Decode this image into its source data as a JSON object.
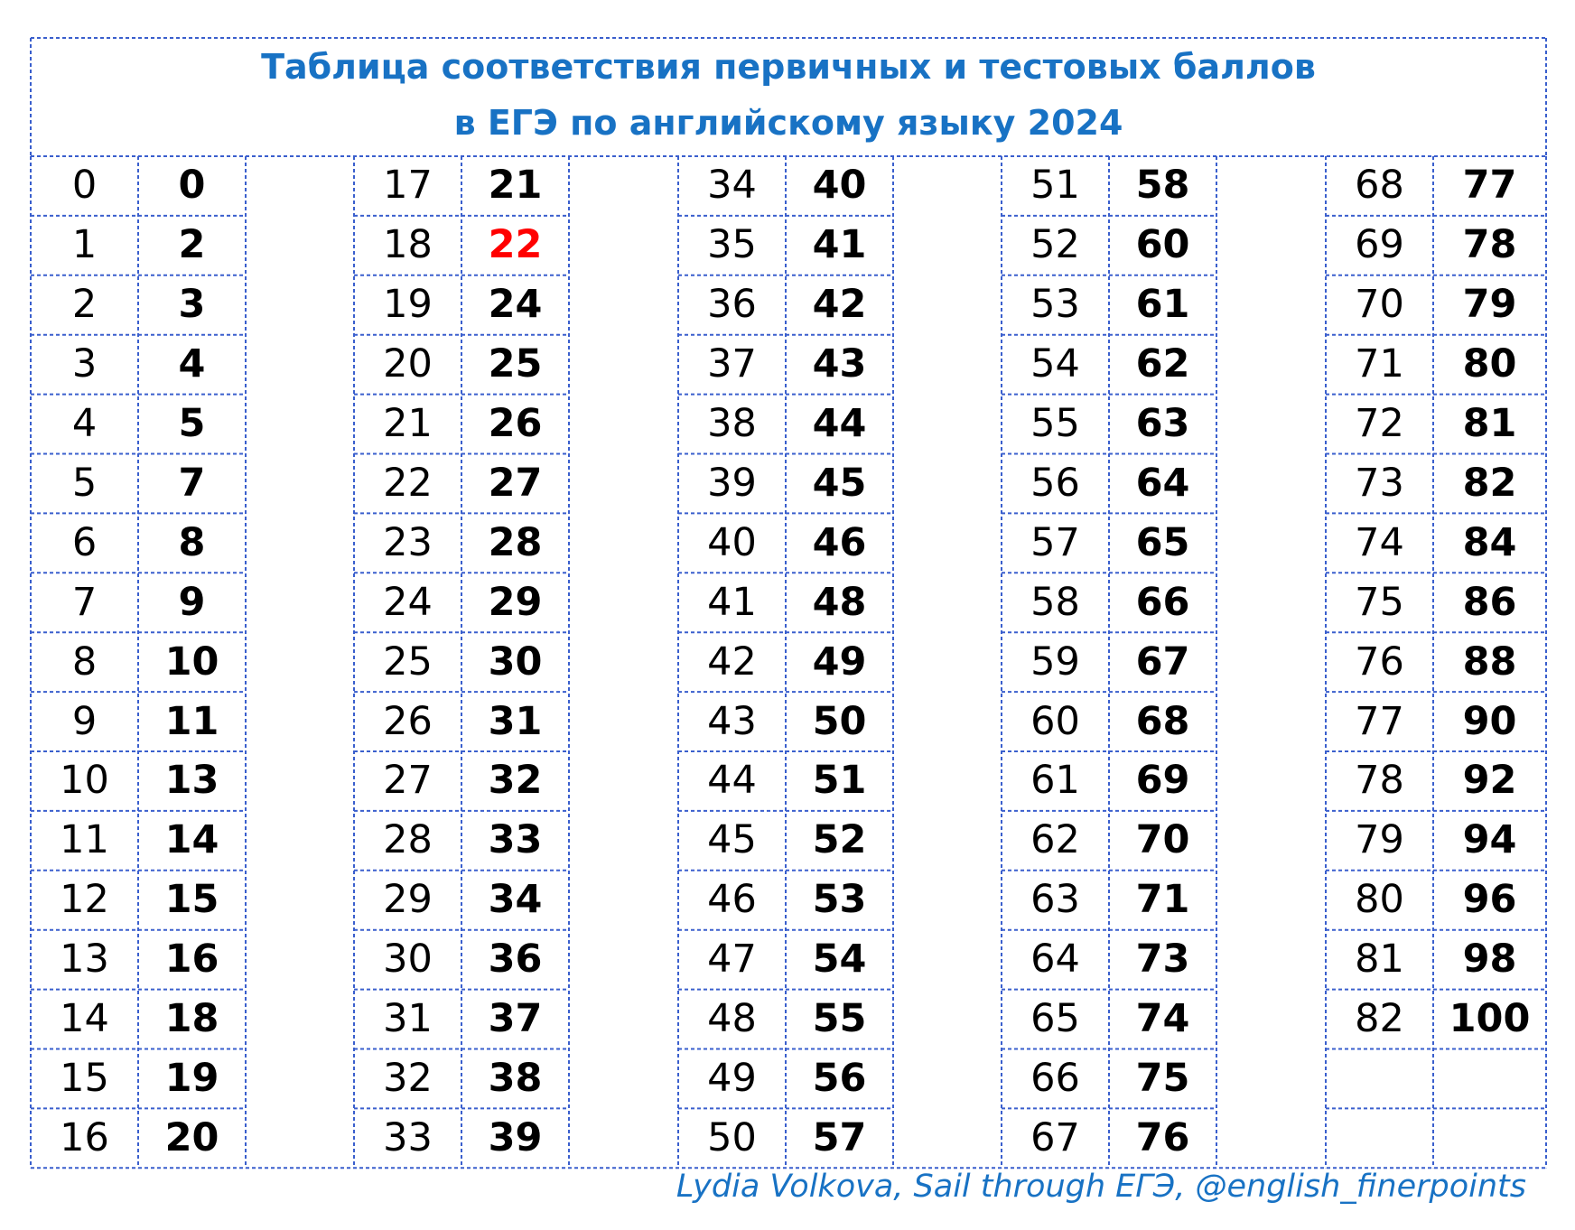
{
  "title": {
    "line1": "Таблица соответствия первичных и тестовых баллов",
    "line2": "в ЕГЭ по английскому языку 2024"
  },
  "accent_color": "#1872c4",
  "highlight_color": "#ff0000",
  "grid_color": "#3a5fcd",
  "table": {
    "columns": [
      {
        "rows": [
          {
            "primary": "0",
            "test": "0"
          },
          {
            "primary": "1",
            "test": "2"
          },
          {
            "primary": "2",
            "test": "3"
          },
          {
            "primary": "3",
            "test": "4"
          },
          {
            "primary": "4",
            "test": "5"
          },
          {
            "primary": "5",
            "test": "7"
          },
          {
            "primary": "6",
            "test": "8"
          },
          {
            "primary": "7",
            "test": "9"
          },
          {
            "primary": "8",
            "test": "10"
          },
          {
            "primary": "9",
            "test": "11"
          },
          {
            "primary": "10",
            "test": "13"
          },
          {
            "primary": "11",
            "test": "14"
          },
          {
            "primary": "12",
            "test": "15"
          },
          {
            "primary": "13",
            "test": "16"
          },
          {
            "primary": "14",
            "test": "18"
          },
          {
            "primary": "15",
            "test": "19"
          },
          {
            "primary": "16",
            "test": "20"
          }
        ]
      },
      {
        "rows": [
          {
            "primary": "17",
            "test": "21"
          },
          {
            "primary": "18",
            "test": "22",
            "highlight": true
          },
          {
            "primary": "19",
            "test": "24"
          },
          {
            "primary": "20",
            "test": "25"
          },
          {
            "primary": "21",
            "test": "26"
          },
          {
            "primary": "22",
            "test": "27"
          },
          {
            "primary": "23",
            "test": "28"
          },
          {
            "primary": "24",
            "test": "29"
          },
          {
            "primary": "25",
            "test": "30"
          },
          {
            "primary": "26",
            "test": "31"
          },
          {
            "primary": "27",
            "test": "32"
          },
          {
            "primary": "28",
            "test": "33"
          },
          {
            "primary": "29",
            "test": "34"
          },
          {
            "primary": "30",
            "test": "36"
          },
          {
            "primary": "31",
            "test": "37"
          },
          {
            "primary": "32",
            "test": "38"
          },
          {
            "primary": "33",
            "test": "39"
          }
        ]
      },
      {
        "rows": [
          {
            "primary": "34",
            "test": "40"
          },
          {
            "primary": "35",
            "test": "41"
          },
          {
            "primary": "36",
            "test": "42"
          },
          {
            "primary": "37",
            "test": "43"
          },
          {
            "primary": "38",
            "test": "44"
          },
          {
            "primary": "39",
            "test": "45"
          },
          {
            "primary": "40",
            "test": "46"
          },
          {
            "primary": "41",
            "test": "48"
          },
          {
            "primary": "42",
            "test": "49"
          },
          {
            "primary": "43",
            "test": "50"
          },
          {
            "primary": "44",
            "test": "51"
          },
          {
            "primary": "45",
            "test": "52"
          },
          {
            "primary": "46",
            "test": "53"
          },
          {
            "primary": "47",
            "test": "54"
          },
          {
            "primary": "48",
            "test": "55"
          },
          {
            "primary": "49",
            "test": "56"
          },
          {
            "primary": "50",
            "test": "57"
          }
        ]
      },
      {
        "rows": [
          {
            "primary": "51",
            "test": "58"
          },
          {
            "primary": "52",
            "test": "60"
          },
          {
            "primary": "53",
            "test": "61"
          },
          {
            "primary": "54",
            "test": "62"
          },
          {
            "primary": "55",
            "test": "63"
          },
          {
            "primary": "56",
            "test": "64"
          },
          {
            "primary": "57",
            "test": "65"
          },
          {
            "primary": "58",
            "test": "66"
          },
          {
            "primary": "59",
            "test": "67"
          },
          {
            "primary": "60",
            "test": "68"
          },
          {
            "primary": "61",
            "test": "69"
          },
          {
            "primary": "62",
            "test": "70"
          },
          {
            "primary": "63",
            "test": "71"
          },
          {
            "primary": "64",
            "test": "73"
          },
          {
            "primary": "65",
            "test": "74"
          },
          {
            "primary": "66",
            "test": "75"
          },
          {
            "primary": "67",
            "test": "76"
          }
        ]
      },
      {
        "rows": [
          {
            "primary": "68",
            "test": "77"
          },
          {
            "primary": "69",
            "test": "78"
          },
          {
            "primary": "70",
            "test": "79"
          },
          {
            "primary": "71",
            "test": "80"
          },
          {
            "primary": "72",
            "test": "81"
          },
          {
            "primary": "73",
            "test": "82"
          },
          {
            "primary": "74",
            "test": "84"
          },
          {
            "primary": "75",
            "test": "86"
          },
          {
            "primary": "76",
            "test": "88"
          },
          {
            "primary": "77",
            "test": "90"
          },
          {
            "primary": "78",
            "test": "92"
          },
          {
            "primary": "79",
            "test": "94"
          },
          {
            "primary": "80",
            "test": "96"
          },
          {
            "primary": "81",
            "test": "98"
          },
          {
            "primary": "82",
            "test": "100"
          },
          {
            "primary": "",
            "test": ""
          },
          {
            "primary": "",
            "test": ""
          }
        ]
      }
    ]
  },
  "credit": "Lydia Volkova, Sail through ЕГЭ, @english_finerpoints"
}
